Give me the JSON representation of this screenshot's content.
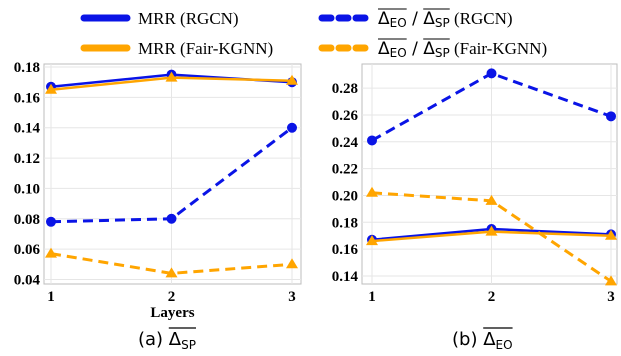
{
  "legend": {
    "items": [
      {
        "label": "MRR (RGCN)",
        "color": "#0a14e6",
        "dashed": false
      },
      {
        "label": "MRR (Fair-KGNN)",
        "color": "#ffa500",
        "dashed": false
      },
      {
        "num": "Δ",
        "num_sub": "EO",
        "sep": " / ",
        "den": "Δ",
        "den_sub": "SP",
        "suffix": " (RGCN)",
        "color": "#0a14e6",
        "dashed": true
      },
      {
        "num": "Δ",
        "num_sub": "EO",
        "sep": " / ",
        "den": "Δ",
        "den_sub": "SP",
        "suffix": " (Fair-KGNN)",
        "color": "#ffa500",
        "dashed": true
      }
    ]
  },
  "chart_data": [
    {
      "type": "line",
      "caption_prefix": "(a) ",
      "caption_delta": "Δ",
      "caption_sub": "SP",
      "xlabel": "Layers",
      "ylabel": "",
      "x": [
        1,
        2,
        3
      ],
      "ylim": [
        0.037,
        0.182
      ],
      "yticks": [
        0.04,
        0.06,
        0.08,
        0.1,
        0.12,
        0.14,
        0.16,
        0.18
      ],
      "ytick_labels": [
        "0.04",
        "0.06",
        "0.08",
        "0.10",
        "0.12",
        "0.14",
        "0.16",
        "0.18"
      ],
      "grid": true,
      "series": [
        {
          "name": "MRR (RGCN)",
          "values": [
            0.167,
            0.175,
            0.17
          ],
          "color": "#0a14e6",
          "dashed": false,
          "marker": "circle"
        },
        {
          "name": "MRR (Fair-KGNN)",
          "values": [
            0.165,
            0.173,
            0.171
          ],
          "color": "#ffa500",
          "dashed": false,
          "marker": "triangle"
        },
        {
          "name": "ΔEO / ΔSP (RGCN)",
          "values": [
            0.078,
            0.08,
            0.14
          ],
          "color": "#0a14e6",
          "dashed": true,
          "marker": "circle"
        },
        {
          "name": "ΔEO / ΔSP (Fair-KGNN)",
          "values": [
            0.057,
            0.044,
            0.05
          ],
          "color": "#ffa500",
          "dashed": true,
          "marker": "triangle"
        }
      ]
    },
    {
      "type": "line",
      "caption_prefix": "(b) ",
      "caption_delta": "Δ",
      "caption_sub": "EO",
      "xlabel": "",
      "ylabel": "",
      "x": [
        1,
        2,
        3
      ],
      "ylim": [
        0.134,
        0.298
      ],
      "yticks": [
        0.14,
        0.16,
        0.18,
        0.2,
        0.22,
        0.24,
        0.26,
        0.28
      ],
      "ytick_labels": [
        "0.14",
        "0.16",
        "0.18",
        "0.20",
        "0.22",
        "0.24",
        "0.26",
        "0.28"
      ],
      "grid": true,
      "series": [
        {
          "name": "MRR (RGCN)",
          "values": [
            0.167,
            0.175,
            0.171
          ],
          "color": "#0a14e6",
          "dashed": false,
          "marker": "circle"
        },
        {
          "name": "MRR (Fair-KGNN)",
          "values": [
            0.166,
            0.173,
            0.17
          ],
          "color": "#ffa500",
          "dashed": false,
          "marker": "triangle"
        },
        {
          "name": "ΔEO / ΔSP (RGCN)",
          "values": [
            0.241,
            0.291,
            0.259
          ],
          "color": "#0a14e6",
          "dashed": true,
          "marker": "circle"
        },
        {
          "name": "ΔEO / ΔSP (Fair-KGNN)",
          "values": [
            0.202,
            0.196,
            0.136
          ],
          "color": "#ffa500",
          "dashed": true,
          "marker": "triangle"
        }
      ]
    }
  ]
}
